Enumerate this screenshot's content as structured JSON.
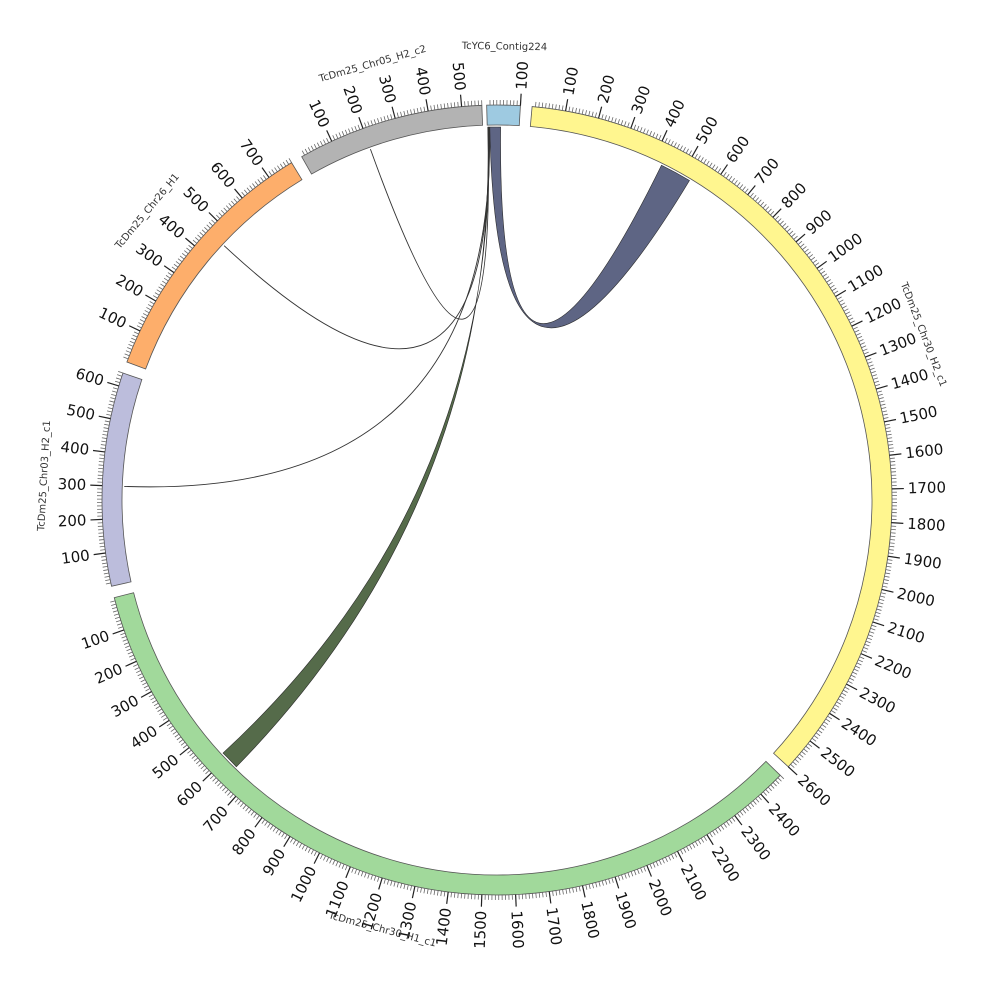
{
  "chart_data": {
    "type": "chord",
    "contigs": [
      {
        "name": "TcYC6_Contig224",
        "length": 100,
        "color": "#9ecae1",
        "tick_labels": [
          "100"
        ],
        "text_side": "outside"
      },
      {
        "name": "TcDm25_Chr30_H2_c1",
        "length": 2600,
        "color": "#fff68f",
        "text_side": "inside",
        "tick_labels": [
          "100",
          "200",
          "300",
          "400",
          "500",
          "600",
          "700",
          "800",
          "900",
          "1000",
          "1100",
          "1200",
          "1300",
          "1400",
          "1500",
          "1600",
          "1700",
          "1800",
          "1900",
          "2000",
          "2100",
          "2200",
          "2300",
          "2400",
          "2500",
          "2600"
        ]
      },
      {
        "name": "TcDm25_Chr30_H1_c1",
        "length": 2480,
        "color": "#a1d99b",
        "text_side": "inside",
        "reversed": true,
        "tick_labels": [
          "100",
          "200",
          "300",
          "400",
          "500",
          "600",
          "700",
          "800",
          "900",
          "1000",
          "1100",
          "1200",
          "1300",
          "1400",
          "1500",
          "1600",
          "1700",
          "1800",
          "1900",
          "2000",
          "2100",
          "2200",
          "2300",
          "2400"
        ]
      },
      {
        "name": "TcDm25_Chr03_H2_c1",
        "length": 640,
        "color": "#bcbddc",
        "text_side": "inside",
        "tick_labels": [
          "100",
          "200",
          "300",
          "400",
          "500",
          "600"
        ]
      },
      {
        "name": "TcDm25_Chr26_H1",
        "length": 780,
        "color": "#fdae6b",
        "text_side": "outside",
        "tick_labels": [
          "100",
          "200",
          "300",
          "400",
          "500",
          "600",
          "700"
        ]
      },
      {
        "name": "TcDm25_Chr05_H2_c2",
        "length": 560,
        "color": "#b3b3b3",
        "text_side": "outside",
        "tick_labels": [
          "100",
          "200",
          "300",
          "400",
          "500"
        ]
      }
    ],
    "links": [
      {
        "source": "TcYC6_Contig224",
        "source_range": [
          8,
          42
        ],
        "target": "TcDm25_Chr30_H2_c1",
        "target_range": [
          430,
          530
        ],
        "color": "#5e6584"
      },
      {
        "source": "TcYC6_Contig224",
        "source_range": [
          2,
          6
        ],
        "target": "TcDm25_Chr30_H1_c1",
        "target_range": [
          580,
          640
        ],
        "color": "#556b4a"
      },
      {
        "source": "TcYC6_Contig224",
        "source_range": [
          1,
          3
        ],
        "target": "TcDm25_Chr05_H2_c2",
        "target_range": [
          199,
          201
        ],
        "color": "#333333"
      },
      {
        "source": "TcYC6_Contig224",
        "source_range": [
          3,
          5
        ],
        "target": "TcDm25_Chr26_H1",
        "target_range": [
          459,
          461
        ],
        "color": "#333333"
      },
      {
        "source": "TcYC6_Contig224",
        "source_range": [
          6,
          8
        ],
        "target": "TcDm25_Chr03_H2_c1",
        "target_range": [
          299,
          301
        ],
        "color": "#333333"
      }
    ]
  }
}
